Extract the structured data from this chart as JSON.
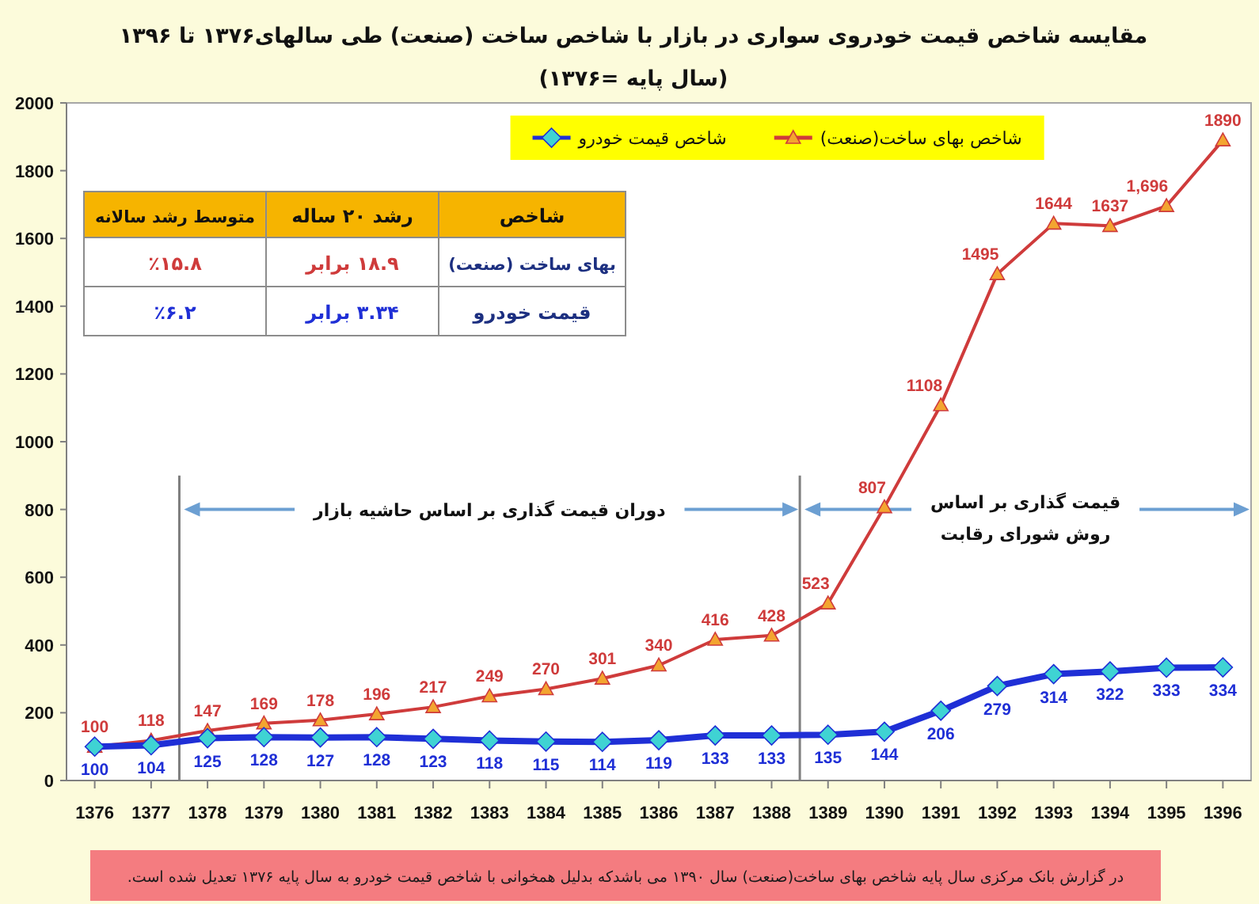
{
  "chart_data": {
    "type": "line",
    "title": "مقایسه شاخص قیمت خودروی سواری در بازار با شاخص ساخت (صنعت) طی سالهای۱۳۷۶ تا ۱۳۹۶",
    "subtitle": "(سال پایه =۱۳۷۶)",
    "x": [
      1376,
      1377,
      1378,
      1379,
      1380,
      1381,
      1382,
      1383,
      1384,
      1385,
      1386,
      1387,
      1388,
      1389,
      1390,
      1391,
      1392,
      1393,
      1394,
      1395,
      1396
    ],
    "xlim": [
      1375.5,
      1396.5
    ],
    "xticks": [
      1376,
      1377,
      1378,
      1379,
      1380,
      1381,
      1382,
      1383,
      1384,
      1385,
      1386,
      1387,
      1388,
      1389,
      1390,
      1391,
      1392,
      1393,
      1394,
      1395,
      1396
    ],
    "ylim": [
      0,
      2000
    ],
    "yticks": [
      0,
      200,
      400,
      600,
      800,
      1000,
      1200,
      1400,
      1600,
      1800,
      2000
    ],
    "legend": "top",
    "series": [
      {
        "name": "شاخص بهای ساخت(صنعت)",
        "color": "#cf3b3b",
        "marker": "triangle",
        "colors": [
          "#f3a530",
          "#f3a530",
          "#f3a530",
          "#f3a530",
          "#f3a530",
          "#f3a530",
          "#f3a530",
          "#f3a530",
          "#f3a530",
          "#f3a530",
          "#f3a530",
          "#f3a530",
          "#f3a530",
          "#f3a530",
          "#f3a530",
          "#f3a530",
          "#f3a530",
          "#f3a530",
          "#f3a530",
          "#f3a530",
          "#f3a530"
        ],
        "values": [
          100,
          118,
          147,
          169,
          178,
          196,
          217,
          249,
          270,
          301,
          340,
          416,
          428,
          523,
          807,
          1108,
          1495,
          1644,
          1637,
          1696,
          1890
        ],
        "value_labels": [
          "100",
          "118",
          "147",
          "169",
          "178",
          "196",
          "217",
          "249",
          "270",
          "301",
          "340",
          "416",
          "428",
          "523",
          "807",
          "1108",
          "1495",
          "1644",
          "1637",
          "1,696",
          "1890"
        ]
      },
      {
        "name": "شاخص قیمت خودرو",
        "color": "#1f2fd6",
        "marker": "diamond",
        "colors": [
          "#3fd3d3",
          "#3fd3d3",
          "#3fd3d3",
          "#3fd3d3",
          "#3fd3d3",
          "#3fd3d3",
          "#3fd3d3",
          "#3fd3d3",
          "#3fd3d3",
          "#3fd3d3",
          "#3fd3d3",
          "#3fd3d3",
          "#3fd3d3",
          "#3fd3d3",
          "#3fd3d3",
          "#3fd3d3",
          "#3fd3d3",
          "#3fd3d3",
          "#3fd3d3",
          "#3fd3d3",
          "#3fd3d3"
        ],
        "values": [
          100,
          104,
          125,
          128,
          127,
          128,
          123,
          118,
          115,
          114,
          119,
          133,
          133,
          135,
          144,
          206,
          279,
          314,
          322,
          333,
          334
        ],
        "value_labels": [
          "100",
          "104",
          "125",
          "128",
          "127",
          "128",
          "123",
          "118",
          "115",
          "114",
          "119",
          "133",
          "133",
          "135",
          "144",
          "206",
          "279",
          "314",
          "322",
          "333",
          "334"
        ]
      }
    ],
    "ref_lines": [
      {
        "axis": "x",
        "value": 1377.5,
        "color": "#7f7f7f"
      },
      {
        "axis": "x",
        "value": 1388.5,
        "color": "#7f7f7f"
      }
    ],
    "annotations": [
      "دوران قیمت گذاری بر اساس حاشیه بازار",
      "قیمت گذاری بر اساس\nروش شورای رقابت",
      "شاخص",
      "رشد ۲۰ ساله",
      "متوسط رشد سالانه",
      "بهای ساخت (صنعت)",
      "۱۸.۹ برابر",
      "٪۱۵.۸",
      "قیمت خودرو",
      "۳.۳۴ برابر",
      "٪۶.۲",
      "در گزارش بانک مرکزی سال پایه شاخص بهای ساخت(صنعت) سال ۱۳۹۰ می باشدکه بدلیل همخوانی با شاخص قیمت خودرو به سال پایه ۱۳۷۶ تعدیل شده است."
    ]
  }
}
